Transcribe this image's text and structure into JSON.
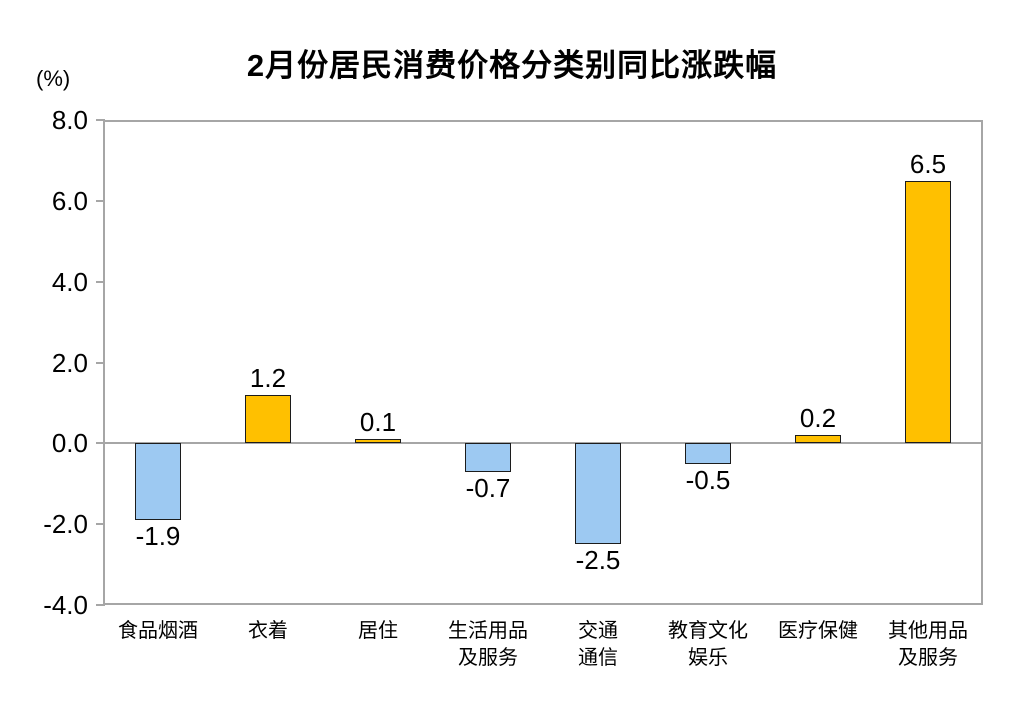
{
  "title": "2月份居民消费价格分类别同比涨跌幅",
  "y_axis_unit_label": "(%)",
  "colors": {
    "positive_bar": "#FFC000",
    "negative_bar": "#9DC9F2",
    "bar_border": "#1c1c1c",
    "axis_gray": "#a6a6a6",
    "text": "#000000"
  },
  "chart_data": {
    "type": "bar",
    "title": "2月份居民消费价格分类别同比涨跌幅",
    "ylabel": "(%)",
    "categories": [
      "食品烟酒",
      "衣着",
      "居住",
      "生活用品及服务",
      "交通通信",
      "教育文化娱乐",
      "医疗保健",
      "其他用品及服务"
    ],
    "category_lines": [
      [
        "食品烟酒"
      ],
      [
        "衣着"
      ],
      [
        "居住"
      ],
      [
        "生活用品",
        "及服务"
      ],
      [
        "交通",
        "通信"
      ],
      [
        "教育文化",
        "娱乐"
      ],
      [
        "医疗保健"
      ],
      [
        "其他用品",
        "及服务"
      ]
    ],
    "values": [
      -1.9,
      1.2,
      0.1,
      -0.7,
      -2.5,
      -0.5,
      0.2,
      6.5
    ],
    "data_labels": [
      "-1.9",
      "1.2",
      "0.1",
      "-0.7",
      "-2.5",
      "-0.5",
      "0.2",
      "6.5"
    ],
    "ylim": [
      -4.0,
      8.0
    ],
    "ytick_step": 2.0,
    "ytick_labels": [
      "8.0",
      "6.0",
      "4.0",
      "2.0",
      "0.0",
      "-2.0",
      "-4.0"
    ],
    "grid": false,
    "legend_position": "none"
  }
}
